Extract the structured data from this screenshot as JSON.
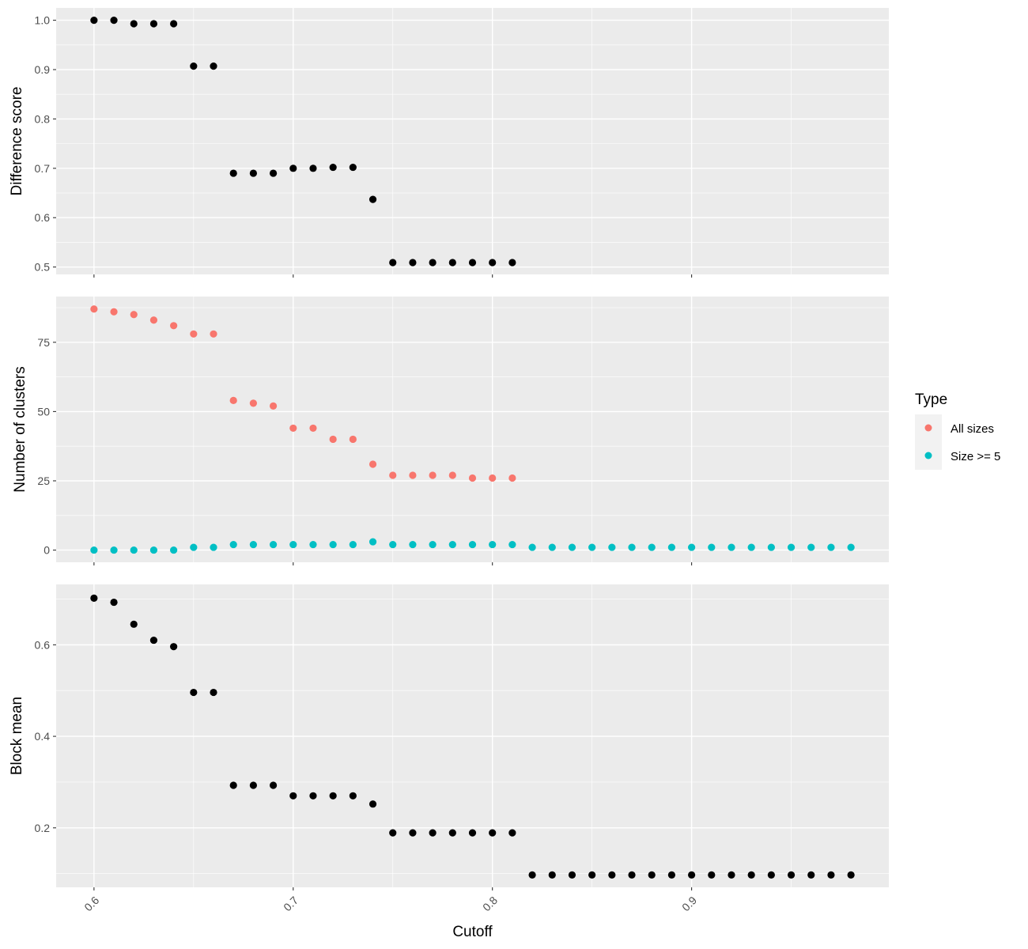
{
  "chart_data": [
    {
      "type": "scatter",
      "title": "",
      "xlabel": "Cutoff",
      "ylabel": "Difference score",
      "xlim": [
        0.581,
        0.999
      ],
      "ylim": [
        0.485,
        1.025
      ],
      "x_ticks": [
        0.6,
        0.7,
        0.8,
        0.9
      ],
      "x_tick_labels": [
        "0.6",
        "0.7",
        "0.8",
        "0.9"
      ],
      "y_ticks": [
        0.5,
        0.6,
        0.7,
        0.8,
        0.9,
        1.0
      ],
      "y_tick_labels": [
        "0.5",
        "0.6",
        "0.7",
        "0.8",
        "0.9",
        "1.0"
      ],
      "grid": true,
      "series": [
        {
          "color": "#000000",
          "x": [
            0.6,
            0.61,
            0.62,
            0.63,
            0.64,
            0.65,
            0.66,
            0.67,
            0.68,
            0.69,
            0.7,
            0.71,
            0.72,
            0.73,
            0.74,
            0.75,
            0.76,
            0.77,
            0.78,
            0.79,
            0.8,
            0.81
          ],
          "y": [
            1.0,
            1.0,
            0.993,
            0.993,
            0.993,
            0.907,
            0.907,
            0.69,
            0.69,
            0.69,
            0.7,
            0.7,
            0.702,
            0.702,
            0.637,
            0.509,
            0.509,
            0.509,
            0.509,
            0.509,
            0.509,
            0.509
          ]
        }
      ]
    },
    {
      "type": "scatter",
      "title": "",
      "xlabel": "Cutoff",
      "ylabel": "Number of clusters",
      "xlim": [
        0.581,
        0.999
      ],
      "ylim": [
        -4.4,
        91.5
      ],
      "x_ticks": [
        0.6,
        0.7,
        0.8,
        0.9
      ],
      "x_tick_labels": [
        "0.6",
        "0.7",
        "0.8",
        "0.9"
      ],
      "y_ticks": [
        0,
        25,
        50,
        75
      ],
      "y_tick_labels": [
        "0",
        "25",
        "50",
        "75"
      ],
      "grid": true,
      "legend": {
        "title": "Type",
        "position": "right"
      },
      "series": [
        {
          "name": "All sizes",
          "color": "#F8766D",
          "x": [
            0.6,
            0.61,
            0.62,
            0.63,
            0.64,
            0.65,
            0.66,
            0.67,
            0.68,
            0.69,
            0.7,
            0.71,
            0.72,
            0.73,
            0.74,
            0.75,
            0.76,
            0.77,
            0.78,
            0.79,
            0.8,
            0.81
          ],
          "y": [
            87,
            86,
            85,
            83,
            81,
            78,
            78,
            54,
            53,
            52,
            44,
            44,
            40,
            40,
            31,
            27,
            27,
            27,
            27,
            26,
            26,
            26
          ]
        },
        {
          "name": "Size >= 5",
          "color": "#00BFC4",
          "x": [
            0.6,
            0.61,
            0.62,
            0.63,
            0.64,
            0.65,
            0.66,
            0.67,
            0.68,
            0.69,
            0.7,
            0.71,
            0.72,
            0.73,
            0.74,
            0.75,
            0.76,
            0.77,
            0.78,
            0.79,
            0.8,
            0.81,
            0.82,
            0.83,
            0.84,
            0.85,
            0.86,
            0.87,
            0.88,
            0.89,
            0.9,
            0.91,
            0.92,
            0.93,
            0.94,
            0.95,
            0.96,
            0.97,
            0.98
          ],
          "y": [
            0,
            0,
            0,
            0,
            0,
            1,
            1,
            2,
            2,
            2,
            2,
            2,
            2,
            2,
            3,
            2,
            2,
            2,
            2,
            2,
            2,
            2,
            1,
            1,
            1,
            1,
            1,
            1,
            1,
            1,
            1,
            1,
            1,
            1,
            1,
            1,
            1,
            1,
            1
          ]
        }
      ]
    },
    {
      "type": "scatter",
      "title": "",
      "xlabel": "Cutoff",
      "ylabel": "Block mean",
      "xlim": [
        0.581,
        0.999
      ],
      "ylim": [
        0.07,
        0.732
      ],
      "x_ticks": [
        0.6,
        0.7,
        0.8,
        0.9
      ],
      "x_tick_labels": [
        "0.6",
        "0.7",
        "0.8",
        "0.9"
      ],
      "y_ticks": [
        0.2,
        0.4,
        0.6
      ],
      "y_tick_labels": [
        "0.2",
        "0.4",
        "0.6"
      ],
      "grid": true,
      "series": [
        {
          "color": "#000000",
          "x": [
            0.6,
            0.61,
            0.62,
            0.63,
            0.64,
            0.65,
            0.66,
            0.67,
            0.68,
            0.69,
            0.7,
            0.71,
            0.72,
            0.73,
            0.74,
            0.75,
            0.76,
            0.77,
            0.78,
            0.79,
            0.8,
            0.81,
            0.82,
            0.83,
            0.84,
            0.85,
            0.86,
            0.87,
            0.88,
            0.89,
            0.9,
            0.91,
            0.92,
            0.93,
            0.94,
            0.95,
            0.96,
            0.97,
            0.98
          ],
          "y": [
            0.702,
            0.693,
            0.645,
            0.61,
            0.596,
            0.496,
            0.496,
            0.293,
            0.293,
            0.293,
            0.27,
            0.27,
            0.27,
            0.27,
            0.252,
            0.189,
            0.189,
            0.189,
            0.189,
            0.189,
            0.189,
            0.189,
            0.097,
            0.097,
            0.097,
            0.097,
            0.097,
            0.097,
            0.097,
            0.097,
            0.097,
            0.097,
            0.097,
            0.097,
            0.097,
            0.097,
            0.097,
            0.097,
            0.097
          ]
        }
      ]
    }
  ],
  "colors": {
    "panel_background": "#EBEBEB",
    "major_grid": "#FFFFFF",
    "tick_text": "#4D4D4D",
    "tick_mark": "#333333"
  }
}
